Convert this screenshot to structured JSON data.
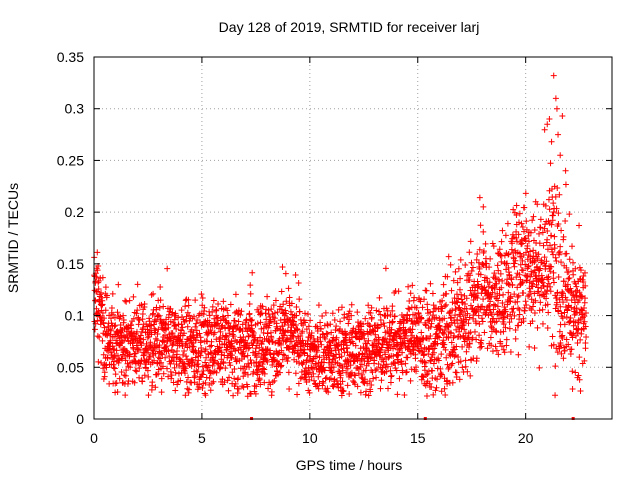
{
  "chart_data": {
    "type": "scatter",
    "title": "Day 128 of 2019, SRMTID for receiver larj",
    "xlabel": "GPS time / hours",
    "ylabel": "SRMTID / TECUs",
    "xlim": [
      0,
      24
    ],
    "ylim": [
      0,
      0.35
    ],
    "xticks": [
      0,
      5,
      10,
      15,
      20
    ],
    "xtick_labels": [
      "0",
      "5",
      "10",
      "15",
      "20"
    ],
    "yticks": [
      0,
      0.05,
      0.1,
      0.15,
      0.2,
      0.25,
      0.3,
      0.35
    ],
    "ytick_labels": [
      "0",
      "0.05",
      "0.1",
      "0.15",
      "0.2",
      "0.25",
      "0.3",
      "0.35"
    ],
    "grid": true,
    "marker": "plus",
    "color": "#ff0000",
    "series": [
      {
        "name": "SRMTID",
        "envelope_x": [
          0,
          0.2,
          0.5,
          1,
          2,
          3,
          4,
          5,
          6,
          7,
          8,
          8.8,
          9.5,
          10,
          11,
          12,
          13,
          14,
          15,
          15.5,
          16,
          17,
          17.5,
          18,
          18.5,
          19,
          19.5,
          20,
          20.5,
          21,
          21.4,
          21.8,
          22.2,
          22.6,
          22.8
        ],
        "envelope_median": [
          0.12,
          0.115,
          0.08,
          0.07,
          0.072,
          0.072,
          0.07,
          0.07,
          0.072,
          0.07,
          0.07,
          0.09,
          0.07,
          0.06,
          0.062,
          0.065,
          0.07,
          0.075,
          0.085,
          0.065,
          0.075,
          0.09,
          0.1,
          0.135,
          0.105,
          0.12,
          0.14,
          0.15,
          0.145,
          0.15,
          0.16,
          0.13,
          0.1,
          0.1,
          0.09
        ],
        "envelope_spread": [
          0.02,
          0.025,
          0.025,
          0.022,
          0.025,
          0.025,
          0.025,
          0.025,
          0.025,
          0.028,
          0.025,
          0.025,
          0.023,
          0.02,
          0.022,
          0.022,
          0.023,
          0.025,
          0.025,
          0.028,
          0.028,
          0.028,
          0.03,
          0.03,
          0.03,
          0.035,
          0.035,
          0.035,
          0.04,
          0.045,
          0.055,
          0.045,
          0.035,
          0.03,
          0.03
        ],
        "peak_points": [
          [
            21.3,
            0.332
          ],
          [
            21.4,
            0.31
          ],
          [
            21.1,
            0.29
          ],
          [
            21.45,
            0.3
          ],
          [
            21.7,
            0.293
          ],
          [
            21.0,
            0.285
          ],
          [
            21.5,
            0.275
          ],
          [
            21.2,
            0.268
          ],
          [
            21.6,
            0.255
          ],
          [
            21.85,
            0.24
          ],
          [
            22.4,
            0.04
          ],
          [
            22.45,
            0.042
          ],
          [
            22.3,
            0.045
          ],
          [
            22.5,
            0.038
          ]
        ],
        "n_points_approx": 3000
      }
    ],
    "baseline_marks_x": [
      7.3,
      15.35,
      22.2
    ]
  }
}
